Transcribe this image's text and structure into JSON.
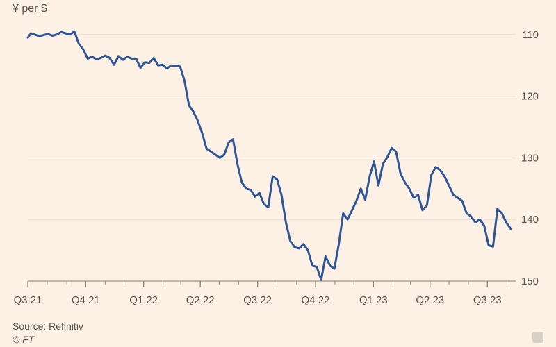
{
  "chart_data": {
    "type": "line",
    "ylabel": "¥ per $",
    "y_axis_inverted": true,
    "ylim": [
      108,
      150
    ],
    "yticks": [
      110,
      120,
      130,
      140,
      150
    ],
    "xlim": [
      "2021-07-01",
      "2023-08-15"
    ],
    "xticks": [
      {
        "label": "Q3 21",
        "date": "2021-07-01"
      },
      {
        "label": "Q4 21",
        "date": "2021-10-01"
      },
      {
        "label": "Q1 22",
        "date": "2022-01-01"
      },
      {
        "label": "Q2 22",
        "date": "2022-04-01"
      },
      {
        "label": "Q3 22",
        "date": "2022-07-01"
      },
      {
        "label": "Q4 22",
        "date": "2022-10-01"
      },
      {
        "label": "Q1 23",
        "date": "2023-01-01"
      },
      {
        "label": "Q2 23",
        "date": "2023-04-01"
      },
      {
        "label": "Q3 23",
        "date": "2023-07-01"
      }
    ],
    "grid": true,
    "line_color": "#2e5597",
    "series": [
      {
        "x": [
          "2021-07-01",
          "2021-07-06",
          "2021-07-12",
          "2021-07-19",
          "2021-07-26",
          "2021-08-02",
          "2021-08-09",
          "2021-08-16",
          "2021-08-23",
          "2021-08-30",
          "2021-09-06",
          "2021-09-13",
          "2021-09-20",
          "2021-09-27",
          "2021-10-04",
          "2021-10-11",
          "2021-10-18",
          "2021-10-25",
          "2021-11-01",
          "2021-11-08",
          "2021-11-15",
          "2021-11-22",
          "2021-11-29",
          "2021-12-06",
          "2021-12-13",
          "2021-12-20",
          "2021-12-27",
          "2022-01-03",
          "2022-01-10",
          "2022-01-17",
          "2022-01-24",
          "2022-01-31",
          "2022-02-07",
          "2022-02-14",
          "2022-02-21",
          "2022-02-28",
          "2022-03-07",
          "2022-03-14",
          "2022-03-21",
          "2022-03-28",
          "2022-04-04",
          "2022-04-11",
          "2022-04-18",
          "2022-04-25",
          "2022-05-02",
          "2022-05-09",
          "2022-05-16",
          "2022-05-23",
          "2022-05-30",
          "2022-06-06",
          "2022-06-13",
          "2022-06-20",
          "2022-06-27",
          "2022-07-04",
          "2022-07-11",
          "2022-07-18",
          "2022-07-25",
          "2022-08-01",
          "2022-08-08",
          "2022-08-15",
          "2022-08-22",
          "2022-08-29",
          "2022-09-05",
          "2022-09-12",
          "2022-09-19",
          "2022-09-26",
          "2022-10-03",
          "2022-10-10",
          "2022-10-17",
          "2022-10-24",
          "2022-10-31",
          "2022-11-07",
          "2022-11-14",
          "2022-11-21",
          "2022-11-28",
          "2022-12-05",
          "2022-12-12",
          "2022-12-19",
          "2022-12-26",
          "2023-01-02",
          "2023-01-09",
          "2023-01-16",
          "2023-01-23",
          "2023-01-30",
          "2023-02-06",
          "2023-02-13",
          "2023-02-20",
          "2023-02-27",
          "2023-03-06",
          "2023-03-13",
          "2023-03-20",
          "2023-03-27",
          "2023-04-03",
          "2023-04-10",
          "2023-04-17",
          "2023-04-24",
          "2023-05-01",
          "2023-05-08",
          "2023-05-15",
          "2023-05-22",
          "2023-05-29",
          "2023-06-05",
          "2023-06-12",
          "2023-06-19",
          "2023-06-26",
          "2023-07-03",
          "2023-07-10",
          "2023-07-17",
          "2023-07-24",
          "2023-07-31",
          "2023-08-07"
        ],
        "y": [
          110.5,
          109.8,
          110.0,
          110.3,
          110.1,
          109.9,
          110.2,
          110.0,
          109.6,
          109.8,
          110.0,
          109.5,
          111.5,
          112.4,
          113.9,
          113.6,
          114.0,
          113.8,
          113.4,
          113.8,
          114.9,
          113.5,
          114.1,
          113.6,
          113.9,
          113.9,
          115.4,
          114.5,
          114.6,
          113.8,
          115.0,
          114.9,
          115.5,
          115.0,
          115.1,
          115.2,
          117.5,
          121.5,
          122.5,
          124.0,
          126.0,
          128.5,
          129.0,
          129.5,
          130.0,
          129.5,
          127.5,
          127.0,
          131.0,
          134.0,
          135.0,
          135.2,
          136.3,
          135.7,
          137.5,
          138.0,
          133.0,
          133.5,
          136.0,
          140.5,
          143.5,
          144.5,
          144.7,
          144.0,
          145.0,
          147.5,
          147.7,
          149.8,
          146.0,
          147.5,
          148.0,
          144.0,
          139.0,
          140.0,
          138.5,
          137.0,
          135.0,
          136.8,
          133.0,
          130.6,
          134.5,
          131.0,
          129.9,
          128.4,
          129.0,
          132.5,
          134.0,
          135.0,
          136.5,
          136.0,
          138.5,
          137.7,
          132.8,
          131.5,
          132.0,
          133.0,
          134.5,
          136.0,
          136.5,
          137.0,
          139.0,
          139.5,
          140.5,
          140.0,
          141.0,
          144.2,
          144.4,
          138.3,
          139.0,
          140.5,
          141.5
        ]
      }
    ]
  },
  "footer": {
    "source": "Source: Refinitiv",
    "copyright": "© FT"
  }
}
